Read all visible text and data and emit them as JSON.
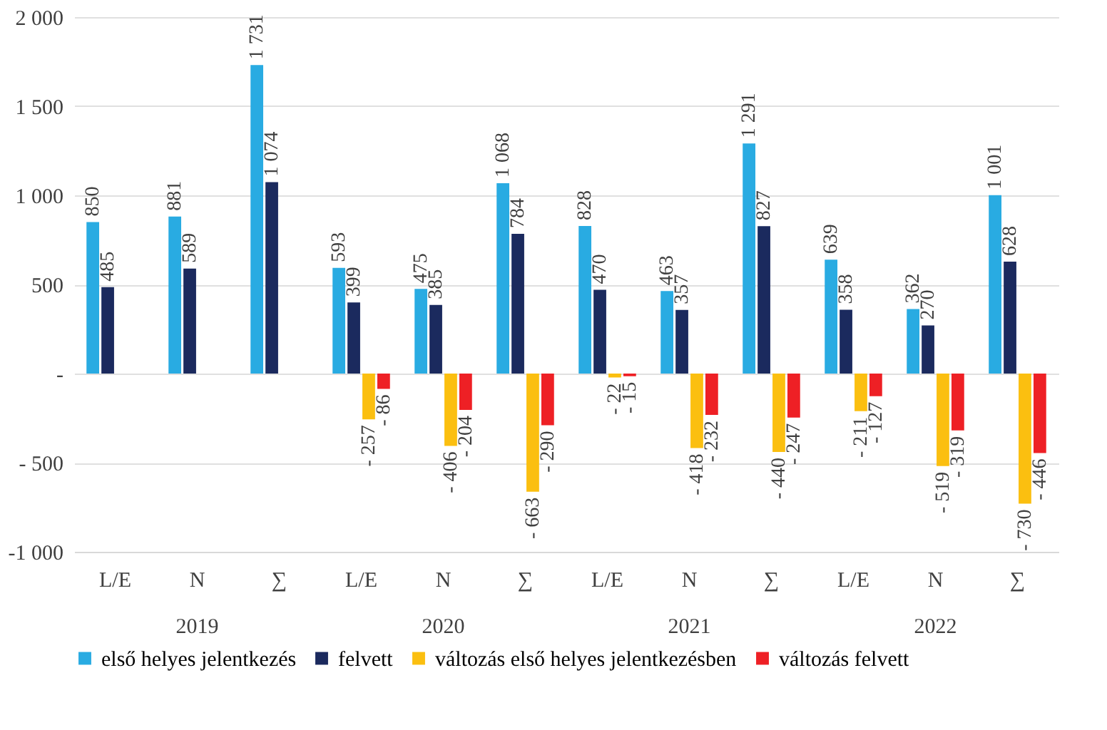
{
  "chart_data": {
    "type": "bar",
    "categories": [
      "L/E",
      "N",
      "∑",
      "L/E",
      "N",
      "∑",
      "L/E",
      "N",
      "∑",
      "L/E",
      "N",
      "∑"
    ],
    "series": [
      {
        "name": "első helyes jelentkezés",
        "color": "#29abe2",
        "values": [
          850,
          881,
          1731,
          593,
          475,
          1068,
          828,
          463,
          1291,
          639,
          362,
          1001
        ],
        "value_labels": [
          "850",
          "881",
          "1 731",
          "593",
          "475",
          "1 068",
          "828",
          "463",
          "1 291",
          "639",
          "362",
          "1 001"
        ]
      },
      {
        "name": "felvett",
        "color": "#1b2a5e",
        "values": [
          485,
          589,
          1074,
          399,
          385,
          784,
          470,
          357,
          827,
          358,
          270,
          628
        ],
        "value_labels": [
          "485",
          "589",
          "1 074",
          "399",
          "385",
          "784",
          "470",
          "357",
          "827",
          "358",
          "270",
          "628"
        ]
      },
      {
        "name": "változás első helyes jelentkezésben",
        "color": "#fbbf10",
        "values": [
          null,
          null,
          null,
          -257,
          -406,
          -663,
          -22,
          -418,
          -440,
          -211,
          -519,
          -730
        ],
        "value_labels": [
          null,
          null,
          null,
          "- 257",
          "- 406",
          "- 663",
          "- 22",
          "- 418",
          "- 440",
          "- 211",
          "- 519",
          "- 730"
        ]
      },
      {
        "name": "változás felvett",
        "color": "#ee2025",
        "values": [
          null,
          null,
          null,
          -86,
          -204,
          -290,
          -15,
          -232,
          -247,
          -127,
          -319,
          -446
        ],
        "value_labels": [
          null,
          null,
          null,
          "- 86",
          "- 204",
          "- 290",
          "- 15",
          "- 232",
          "- 247",
          "- 127",
          "- 319",
          "- 446"
        ]
      }
    ],
    "ylim": [
      -1000,
      2000
    ],
    "yticks": [
      {
        "value": 2000,
        "label": "2 000"
      },
      {
        "value": 1500,
        "label": "1 500"
      },
      {
        "value": 1000,
        "label": "1 000"
      },
      {
        "value": 500,
        "label": "500"
      },
      {
        "value": 0,
        "label": "-"
      },
      {
        "value": -500,
        "label": "- 500"
      },
      {
        "value": -1000,
        "label": "-1 000"
      }
    ],
    "annotations": [
      "2019",
      "2020",
      "2021",
      "2022"
    ],
    "grid": "y",
    "legend": "bottom"
  }
}
